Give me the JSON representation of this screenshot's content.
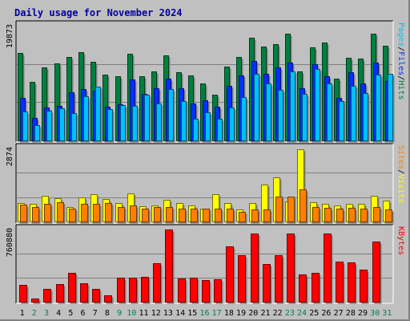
{
  "chart_data": {
    "title": "Daily usage for November 2024",
    "type": "bar",
    "days": [
      "1",
      "2",
      "3",
      "4",
      "5",
      "6",
      "7",
      "8",
      "9",
      "10",
      "11",
      "12",
      "13",
      "14",
      "15",
      "16",
      "17",
      "18",
      "19",
      "20",
      "21",
      "22",
      "23",
      "24",
      "25",
      "26",
      "27",
      "28",
      "29",
      "30",
      "31"
    ],
    "weekend_days": [
      "2",
      "3",
      "9",
      "10",
      "16",
      "17",
      "23",
      "24",
      "30",
      "31"
    ],
    "panels": [
      {
        "name": "hits_files_pages",
        "ymax_label": "19873",
        "ymax": 19873,
        "legend": [
          "Pages",
          "/",
          "Files",
          "/",
          "Hits"
        ],
        "legend_colors": [
          "#00c0ff",
          "#000000",
          "#0030ff",
          "#000000",
          "#008040"
        ],
        "series": [
          {
            "name": "Hits",
            "color": "#008040",
            "values": [
              15200,
              10100,
              12700,
              13400,
              14500,
              15300,
              13600,
              11400,
              11100,
              15000,
              11100,
              12000,
              14800,
              11800,
              11200,
              9800,
              7900,
              12800,
              14400,
              17800,
              16200,
              16700,
              18500,
              11900,
              16100,
              17000,
              10700,
              14300,
              14200,
              18500,
              16400
            ]
          },
          {
            "name": "Files",
            "color": "#0030ff",
            "values": [
              7300,
              3900,
              5700,
              6000,
              8400,
              8900,
              8600,
              5900,
              6200,
              10500,
              8000,
              9000,
              10700,
              9100,
              6400,
              7000,
              5800,
              9500,
              11300,
              13700,
              11500,
              12600,
              13500,
              9100,
              13200,
              11100,
              7300,
              11800,
              9900,
              13500,
              10300
            ]
          },
          {
            "name": "Pages",
            "color": "#00c0ff",
            "values": [
              5000,
              2700,
              5200,
              5600,
              4700,
              7700,
              9300,
              5400,
              6100,
              6000,
              7900,
              6400,
              8900,
              6800,
              3800,
              4800,
              3800,
              5700,
              7500,
              11500,
              9900,
              8700,
              12000,
              8100,
              12400,
              9800,
              6800,
              9500,
              8200,
              11400,
              11600
            ]
          }
        ]
      },
      {
        "name": "sites_visits",
        "ymax_label": "2874",
        "ymax": 2874,
        "legend": [
          "Sites",
          "/",
          "Visits"
        ],
        "legend_colors": [
          "#ff8000",
          "#000000",
          "#ffff00"
        ],
        "series": [
          {
            "name": "Visits",
            "color": "#ffff00",
            "values": [
              740,
              700,
              1000,
              930,
              560,
              960,
              1080,
              900,
              740,
              1100,
              600,
              620,
              840,
              720,
              640,
              520,
              1060,
              720,
              460,
              720,
              1450,
              1740,
              800,
              2840,
              750,
              700,
              620,
              680,
              680,
              1020,
              810
            ]
          },
          {
            "name": "Sites",
            "color": "#ff8000",
            "values": [
              670,
              570,
              690,
              750,
              520,
              710,
              700,
              730,
              580,
              630,
              510,
              560,
              570,
              510,
              490,
              500,
              510,
              500,
              390,
              480,
              470,
              980,
              970,
              1270,
              570,
              540,
              510,
              530,
              520,
              560,
              480
            ]
          }
        ]
      },
      {
        "name": "kbytes",
        "ymax_label": "760880",
        "ymax": 760880,
        "legend": [
          "KBytes"
        ],
        "legend_colors": [
          "#ff0000"
        ],
        "series": [
          {
            "name": "KBytes",
            "color": "#ff0000",
            "values": [
              174000,
              38000,
              137000,
              187000,
              305000,
              196000,
              132000,
              71000,
              256000,
              250000,
              259000,
              403000,
              759000,
              241000,
              256000,
              226000,
              235000,
              581000,
              493000,
              716000,
              394000,
              488000,
              716000,
              291000,
              301000,
              721000,
              419000,
              414000,
              339000,
              637000,
              0
            ]
          }
        ]
      }
    ]
  }
}
